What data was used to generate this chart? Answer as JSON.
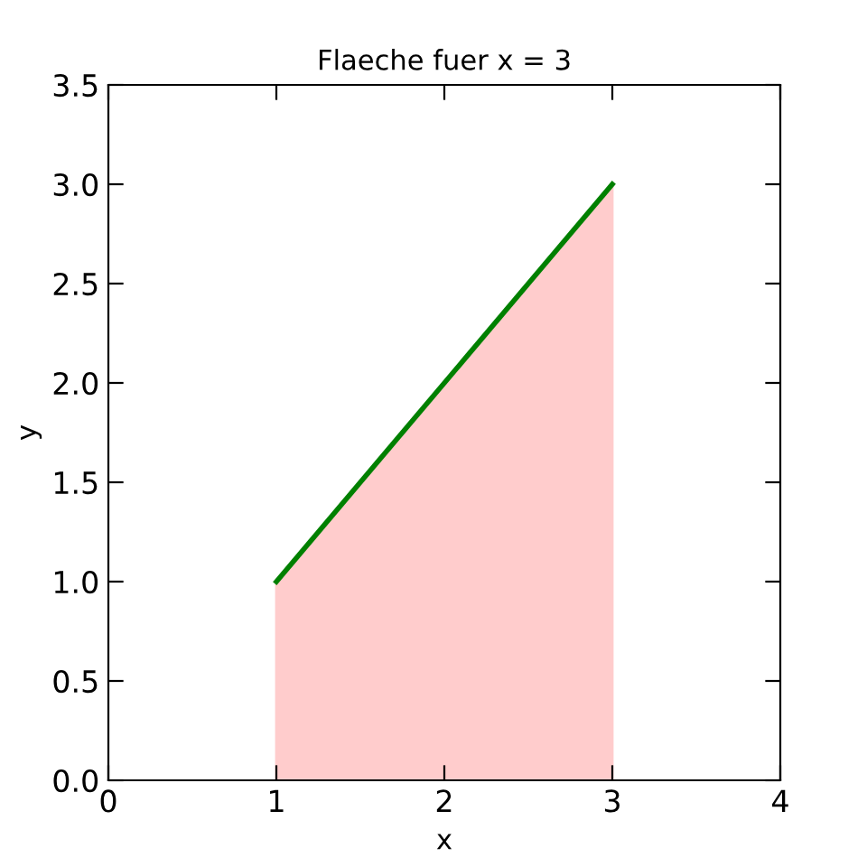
{
  "chart_data": {
    "type": "line",
    "title": "Flaeche fuer x = 3",
    "xlabel": "x",
    "ylabel": "y",
    "x": [
      1,
      3
    ],
    "series": [
      {
        "type": "area",
        "color": "#ffcccc",
        "values": [
          1,
          3
        ]
      },
      {
        "color": "#008000",
        "values": [
          1,
          3
        ]
      }
    ],
    "xlim": [
      0,
      4
    ],
    "ylim": [
      0,
      3.5
    ],
    "xticks": [
      0,
      1,
      2,
      3,
      4
    ],
    "yticks": [
      {
        "value": 0,
        "label": "0.0"
      },
      0.5,
      {
        "value": 1,
        "label": "1.0"
      },
      1.5,
      {
        "value": 2,
        "label": "2.0"
      },
      2.5,
      {
        "value": 3,
        "label": "3.0"
      },
      3.5
    ],
    "grid": false,
    "legend": false
  }
}
